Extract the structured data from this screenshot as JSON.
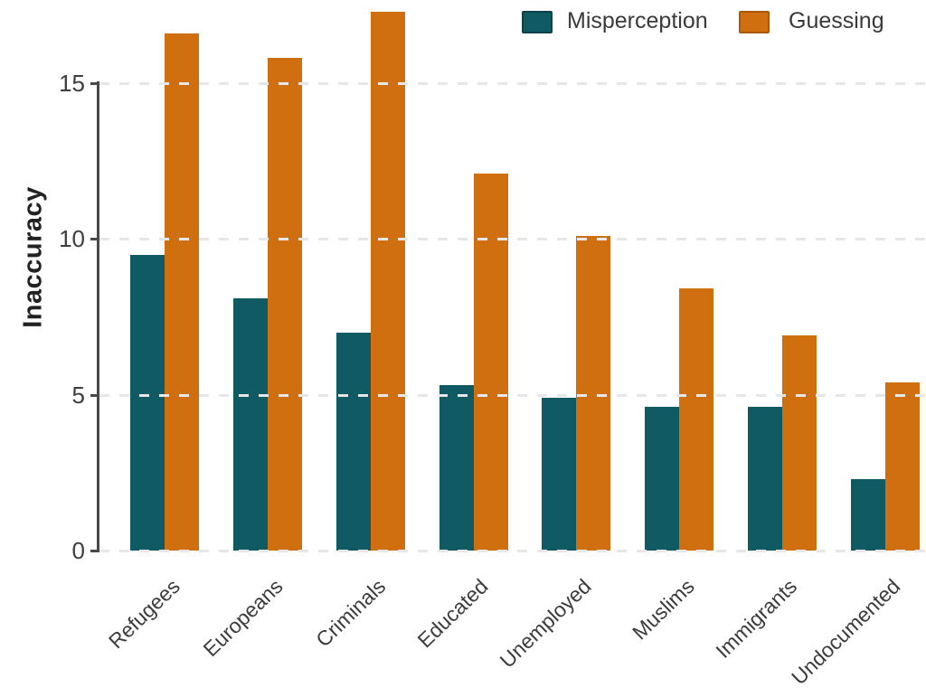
{
  "chart_data": {
    "type": "bar",
    "title": "",
    "ylabel": "Inaccuracy",
    "xlabel": "",
    "categories": [
      "Refugees",
      "Europeans",
      "Criminals",
      "Educated",
      "Unemployed",
      "Muslims",
      "Immigrants",
      "Undocumented"
    ],
    "series": [
      {
        "name": "Misperception",
        "color": "#0f5a63",
        "border_color": "#0a434b",
        "values": [
          9.5,
          8.1,
          7.0,
          5.3,
          4.9,
          4.6,
          4.6,
          2.3
        ]
      },
      {
        "name": "Guessing",
        "color": "#d06f10",
        "border_color": "#a8590c",
        "values": [
          16.6,
          15.8,
          17.3,
          12.1,
          10.1,
          8.4,
          6.9,
          5.4
        ]
      }
    ],
    "ylim": [
      0,
      17.5
    ],
    "yticks": [
      0,
      5,
      10,
      15
    ],
    "grid": "horizontal-dashed",
    "legend_position": "top"
  },
  "colors": {
    "axis": "#4a4a4a",
    "grid": "#e7e7e7",
    "tick_text": "#3e3e3e",
    "background": "#ffffff"
  }
}
